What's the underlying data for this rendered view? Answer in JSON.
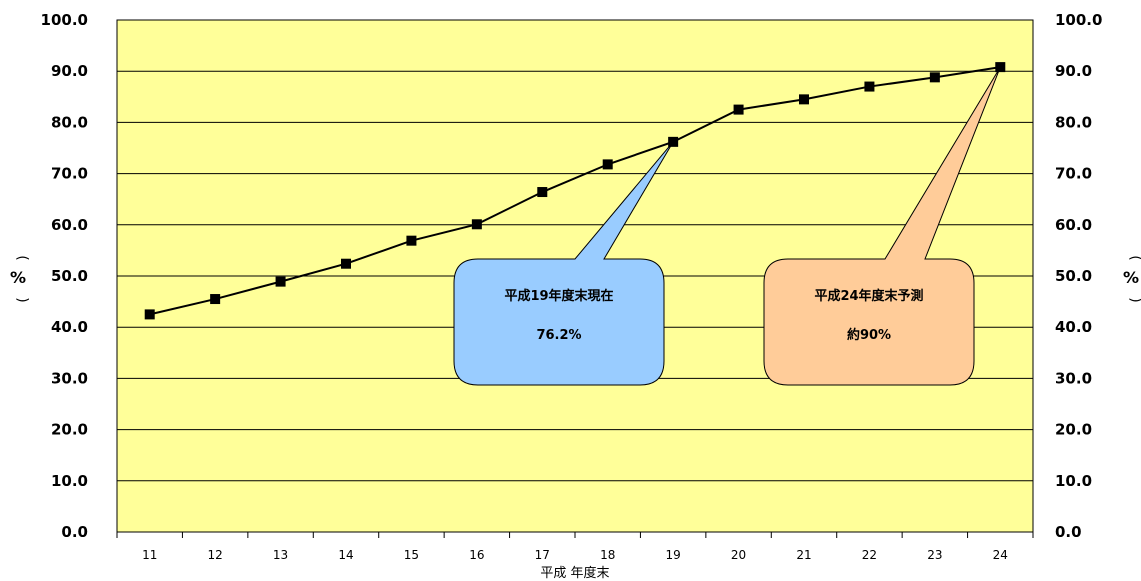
{
  "chart_data": {
    "type": "line",
    "title": "",
    "xlabel": "平成 年度末",
    "ylabel": "%",
    "ylabel_parens": [
      "(",
      ")"
    ],
    "ylim": [
      0,
      100
    ],
    "y_ticks": [
      "0.0",
      "10.0",
      "20.0",
      "30.0",
      "40.0",
      "50.0",
      "60.0",
      "70.0",
      "80.0",
      "90.0",
      "100.0"
    ],
    "categories": [
      "11",
      "12",
      "13",
      "14",
      "15",
      "16",
      "17",
      "18",
      "19",
      "20",
      "21",
      "22",
      "23",
      "24"
    ],
    "series": [
      {
        "values": [
          42.5,
          45.5,
          48.9,
          52.4,
          56.9,
          60.1,
          66.4,
          71.8,
          76.2,
          82.5,
          84.5,
          87.0,
          88.8,
          90.8
        ]
      }
    ],
    "grid": true,
    "plot_background": "#ffff99",
    "line_color": "#000000",
    "marker": "square",
    "annotations": [
      {
        "line1": "平成19年度末現在",
        "line2": "76.2%",
        "target_category": "19",
        "fill": "#99ccff"
      },
      {
        "line1": "平成24年度末予測",
        "line2": "約90%",
        "target_category": "24",
        "fill": "#ffcc99"
      }
    ]
  }
}
